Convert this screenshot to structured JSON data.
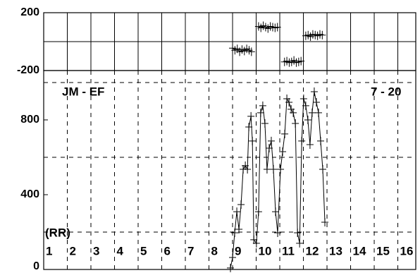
{
  "chart_data": [
    {
      "type": "line",
      "ylim": [
        -200,
        200
      ],
      "yticks": [
        {
          "value": 200,
          "label": "200"
        },
        {
          "value": -200,
          "label": "-200"
        }
      ],
      "ygrid": [
        0
      ],
      "xlim": [
        1,
        16.76
      ],
      "xgrid": [
        2,
        3,
        4,
        5,
        6,
        7,
        8,
        9,
        10,
        11,
        12,
        13,
        14,
        15,
        16
      ],
      "color": "#000",
      "x": [
        9.0,
        9.1,
        9.2,
        9.3,
        9.4,
        9.5,
        9.6,
        9.7,
        9.8,
        9.9,
        10.1,
        10.2,
        10.3,
        10.4,
        10.5,
        10.6,
        10.7,
        10.8,
        10.9,
        11.1,
        11.2,
        11.3,
        11.4,
        11.5,
        11.6,
        11.7,
        11.8,
        11.9,
        12.0,
        12.1,
        12.2,
        12.3,
        12.4,
        12.5,
        12.6,
        12.7,
        12.8
      ],
      "values": [
        -45,
        -60,
        -50,
        -70,
        -55,
        -65,
        -50,
        -60,
        -70,
        null,
        105,
        95,
        110,
        100,
        90,
        105,
        100,
        95,
        100,
        null,
        -140,
        -135,
        -145,
        -140,
        -130,
        -145,
        -140,
        -135,
        null,
        40,
        45,
        35,
        50,
        45,
        40,
        50,
        45
      ]
    },
    {
      "type": "line",
      "ylim": [
        0,
        1064
      ],
      "yticks": [
        {
          "value": 800,
          "label": "800"
        },
        {
          "value": 400,
          "label": "400"
        },
        {
          "value": 0,
          "label": "0"
        }
      ],
      "ygrid": [
        200,
        600,
        1000
      ],
      "xlim": [
        1,
        16.76
      ],
      "color": "#000",
      "xticks": [
        1,
        2,
        3,
        4,
        5,
        6,
        7,
        8,
        9,
        10,
        11,
        12,
        13,
        14,
        15,
        16
      ],
      "annotations": [
        "JM - EF",
        "7 - 20",
        "(RR)"
      ],
      "x": [
        8.91,
        9.0,
        9.09,
        9.18,
        9.27,
        9.36,
        9.45,
        9.54,
        9.63,
        9.69,
        9.78,
        9.84,
        9.9,
        10.01,
        10.1,
        10.19,
        10.28,
        10.37,
        10.46,
        10.55,
        10.64,
        10.73,
        10.82,
        10.91,
        11.03,
        11.12,
        11.21,
        11.3,
        11.39,
        11.48,
        11.57,
        11.66,
        11.75,
        11.84,
        11.93,
        12.01,
        12.1,
        12.19,
        12.28,
        12.37,
        12.46,
        12.55,
        12.64,
        12.73,
        12.82,
        12.91
      ],
      "values": [
        8,
        64,
        196,
        309,
        215,
        347,
        536,
        555,
        536,
        762,
        819,
        687,
        159,
        140,
        309,
        838,
        876,
        781,
        536,
        649,
        687,
        536,
        309,
        196,
        536,
        630,
        725,
        913,
        894,
        857,
        838,
        781,
        196,
        140,
        687,
        913,
        876,
        800,
        668,
        838,
        951,
        894,
        838,
        687,
        536,
        253
      ]
    }
  ]
}
